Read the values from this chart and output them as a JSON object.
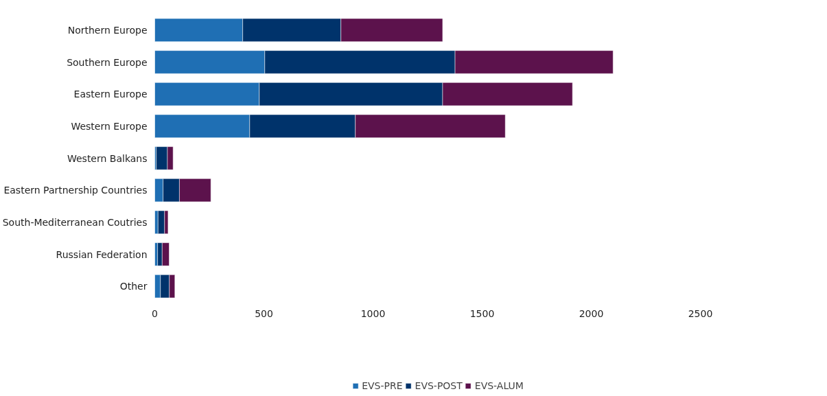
{
  "chart_data": {
    "type": "bar",
    "orientation": "horizontal",
    "stacked": true,
    "legend": "bottom",
    "grid": false,
    "categories": [
      "Northern Europe",
      "Southern Europe",
      "Eastern Europe",
      "Western Europe",
      "Western Balkans",
      "Eastern Partnership Countries",
      "South-Mediterranean Coutries",
      "Russian Federation",
      "Other"
    ],
    "xlim": [
      0,
      2500
    ],
    "xticks": [
      0,
      500,
      1000,
      1500,
      2000,
      2500
    ],
    "series": [
      {
        "name": "EVS-PRE",
        "color": "#1f6fb4",
        "values": [
          403,
          504,
          479,
          435,
          7,
          38,
          15,
          13,
          26
        ]
      },
      {
        "name": "EVS-POST",
        "color": "#00336b",
        "values": [
          450,
          872,
          840,
          484,
          51,
          75,
          30,
          21,
          41
        ]
      },
      {
        "name": "EVS-ALUM",
        "color": "#5c124c",
        "values": [
          466,
          724,
          595,
          687,
          26,
          144,
          16,
          32,
          25
        ]
      }
    ]
  }
}
